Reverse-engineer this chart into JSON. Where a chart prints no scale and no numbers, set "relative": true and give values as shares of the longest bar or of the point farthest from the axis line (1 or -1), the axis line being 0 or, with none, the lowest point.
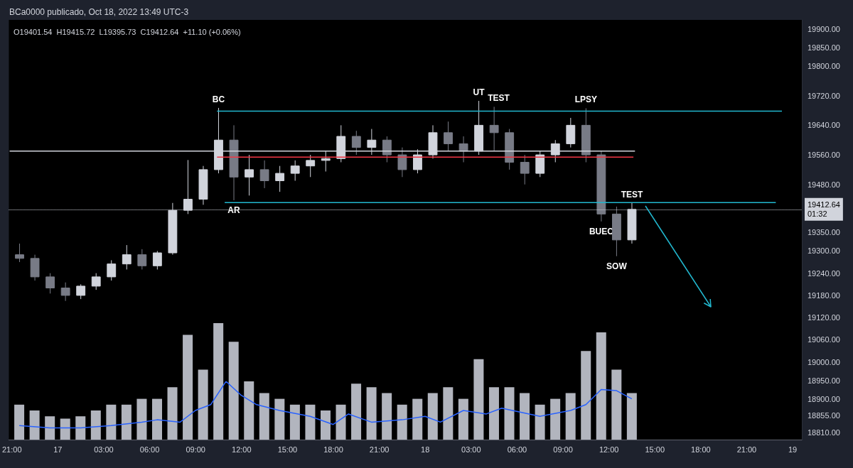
{
  "chart_data": [
    {
      "type": "candlestick",
      "title": "BCa0000 publicado, Oct 18, 2022 13:49 UTC-3",
      "subtitle": "O19401.54  H19415.72  L19395.73  C19412.64  +11.10 (+0.06%)",
      "colors": [
        "#787b86",
        "#787b86",
        "#787b86",
        "#787b86",
        "#d1d4dc",
        "#d1d4dc",
        "#d1d4dc",
        "#d1d4dc",
        "#787b86",
        "#d1d4dc",
        "#d1d4dc",
        "#d1d4dc",
        "#d1d4dc",
        "#d1d4dc",
        "#787b86",
        "#d1d4dc",
        "#787b86",
        "#d1d4dc",
        "#d1d4dc",
        "#d1d4dc",
        "#d1d4dc",
        "#d1d4dc",
        "#787b86",
        "#d1d4dc",
        "#787b86",
        "#787b86",
        "#d1d4dc",
        "#d1d4dc",
        "#787b86",
        "#787b86",
        "#d1d4dc",
        "#787b86",
        "#787b86",
        "#787b86",
        "#d1d4dc",
        "#d1d4dc",
        "#d1d4dc",
        "#787b86",
        "#787b86",
        "#787b86",
        "#d1d4dc"
      ],
      "x": [
        "2022-10-16T21:30",
        "2022-10-16T22:30",
        "2022-10-16T23:30",
        "2022-10-17T00:30",
        "2022-10-17T01:30",
        "2022-10-17T02:30",
        "2022-10-17T03:30",
        "2022-10-17T04:30",
        "2022-10-17T05:30",
        "2022-10-17T06:30",
        "2022-10-17T07:30",
        "2022-10-17T08:30",
        "2022-10-17T09:30",
        "2022-10-17T10:30",
        "2022-10-17T11:30",
        "2022-10-17T12:30",
        "2022-10-17T13:30",
        "2022-10-17T14:30",
        "2022-10-17T15:30",
        "2022-10-17T16:30",
        "2022-10-17T17:30",
        "2022-10-17T18:30",
        "2022-10-17T19:30",
        "2022-10-17T20:30",
        "2022-10-17T21:30",
        "2022-10-17T22:30",
        "2022-10-17T23:30",
        "2022-10-18T00:30",
        "2022-10-18T01:30",
        "2022-10-18T02:30",
        "2022-10-18T03:30",
        "2022-10-18T04:30",
        "2022-10-18T05:30",
        "2022-10-18T06:30",
        "2022-10-18T07:30",
        "2022-10-18T08:30",
        "2022-10-18T09:30",
        "2022-10-18T10:30",
        "2022-10-18T11:30",
        "2022-10-18T12:30",
        "2022-10-18T13:30"
      ],
      "ohlc": [
        [
          19290,
          19320,
          19270,
          19280
        ],
        [
          19280,
          19290,
          19220,
          19230
        ],
        [
          19230,
          19240,
          19185,
          19200
        ],
        [
          19200,
          19215,
          19165,
          19180
        ],
        [
          19180,
          19210,
          19170,
          19205
        ],
        [
          19205,
          19240,
          19195,
          19230
        ],
        [
          19230,
          19275,
          19220,
          19265
        ],
        [
          19265,
          19316,
          19250,
          19290
        ],
        [
          19290,
          19305,
          19250,
          19260
        ],
        [
          19260,
          19300,
          19250,
          19295
        ],
        [
          19295,
          19430,
          19290,
          19410
        ],
        [
          19410,
          19546,
          19400,
          19440
        ],
        [
          19440,
          19530,
          19425,
          19520
        ],
        [
          19520,
          19687,
          19510,
          19600
        ],
        [
          19600,
          19640,
          19437,
          19500
        ],
        [
          19500,
          19560,
          19450,
          19520
        ],
        [
          19520,
          19545,
          19470,
          19490
        ],
        [
          19490,
          19530,
          19460,
          19510
        ],
        [
          19510,
          19545,
          19490,
          19530
        ],
        [
          19530,
          19560,
          19500,
          19545
        ],
        [
          19545,
          19570,
          19515,
          19550
        ],
        [
          19550,
          19640,
          19540,
          19610
        ],
        [
          19610,
          19625,
          19560,
          19580
        ],
        [
          19580,
          19630,
          19560,
          19600
        ],
        [
          19600,
          19610,
          19540,
          19560
        ],
        [
          19560,
          19580,
          19500,
          19520
        ],
        [
          19520,
          19575,
          19510,
          19560
        ],
        [
          19560,
          19640,
          19550,
          19620
        ],
        [
          19620,
          19650,
          19570,
          19590
        ],
        [
          19590,
          19610,
          19540,
          19570
        ],
        [
          19570,
          19706,
          19560,
          19640
        ],
        [
          19640,
          19690,
          19570,
          19620
        ],
        [
          19620,
          19630,
          19520,
          19540
        ],
        [
          19540,
          19560,
          19480,
          19510
        ],
        [
          19510,
          19570,
          19500,
          19560
        ],
        [
          19560,
          19600,
          19540,
          19590
        ],
        [
          19590,
          19660,
          19580,
          19640
        ],
        [
          19640,
          19686,
          19540,
          19560
        ],
        [
          19560,
          19570,
          19380,
          19400
        ],
        [
          19400,
          19420,
          19286,
          19330
        ],
        [
          19330,
          19430,
          19320,
          19412.64
        ]
      ],
      "series": [
        {
          "type": "line",
          "color": "#22b8cf",
          "x": [
            "2022-10-17T10:24",
            "2022-10-18T23:18"
          ],
          "values": [
            19678,
            19678
          ]
        },
        {
          "type": "line",
          "color": "#22b8cf",
          "x": [
            "2022-10-17T10:54",
            "2022-10-18T22:54"
          ],
          "values": [
            19431,
            19431
          ]
        },
        {
          "type": "line",
          "color": "#d1d4dc",
          "x": [
            "2022-10-16T20:51",
            "2022-10-18T13:42"
          ],
          "values": [
            19570,
            19570
          ]
        },
        {
          "type": "line",
          "color": "#f23645",
          "x": [
            "2022-10-17T10:24",
            "2022-10-18T13:36"
          ],
          "values": [
            19554,
            19554
          ]
        }
      ],
      "ref_lines": [
        {
          "axis": "y",
          "value": 19412.64,
          "label": "19412.64\n01:32",
          "color": "#d1d4dc",
          "line_style": "dotted"
        }
      ],
      "annotations": [
        {
          "text": "BC",
          "x": "2022-10-17T10:30",
          "y": 19687
        },
        {
          "text": "AR",
          "x": "2022-10-17T11:30",
          "y": 19437
        },
        {
          "text": "UT",
          "x": "2022-10-18T03:30",
          "y": 19706
        },
        {
          "text": "TEST",
          "x": "2022-10-18T04:30",
          "y": 19690
        },
        {
          "text": "LPSY",
          "x": "2022-10-18T10:30",
          "y": 19686
        },
        {
          "text": "TEST",
          "x": "2022-10-18T13:30",
          "y": 19430
        },
        {
          "text": "BUEC",
          "x": "2022-10-18T11:30",
          "y": 19380
        },
        {
          "text": "SOW",
          "x": "2022-10-18T12:30",
          "y": 19286
        }
      ],
      "xlim": [
        "2022-10-16T20:48",
        "2022-10-19T00:36"
      ],
      "ylim": [
        18790,
        19925
      ],
      "xticks": [
        {
          "value": "2022-10-16T21:00",
          "label": "21:00"
        },
        {
          "value": "2022-10-17T00:00",
          "label": "17"
        },
        {
          "value": "2022-10-17T03:00",
          "label": "03:00"
        },
        {
          "value": "2022-10-17T06:00",
          "label": "06:00"
        },
        {
          "value": "2022-10-17T09:00",
          "label": "09:00"
        },
        {
          "value": "2022-10-17T12:00",
          "label": "12:00"
        },
        {
          "value": "2022-10-17T15:00",
          "label": "15:00"
        },
        {
          "value": "2022-10-17T18:00",
          "label": "18:00"
        },
        {
          "value": "2022-10-17T21:00",
          "label": "21:00"
        },
        {
          "value": "2022-10-18T00:00",
          "label": "18"
        },
        {
          "value": "2022-10-18T03:00",
          "label": "03:00"
        },
        {
          "value": "2022-10-18T06:00",
          "label": "06:00"
        },
        {
          "value": "2022-10-18T09:00",
          "label": "09:00"
        },
        {
          "value": "2022-10-18T12:00",
          "label": "12:00"
        },
        {
          "value": "2022-10-18T15:00",
          "label": "15:00"
        },
        {
          "value": "2022-10-18T18:00",
          "label": "18:00"
        },
        {
          "value": "2022-10-18T21:00",
          "label": "21:00"
        },
        {
          "value": "2022-10-19T00:00",
          "label": "19"
        }
      ],
      "yticks": [
        {
          "value": 19900,
          "label": "19900.00"
        },
        {
          "value": 19850,
          "label": "19850.00"
        },
        {
          "value": 19800,
          "label": "19800.00"
        },
        {
          "value": 19720,
          "label": "19720.00"
        },
        {
          "value": 19640,
          "label": "19640.00"
        },
        {
          "value": 19560,
          "label": "19560.00"
        },
        {
          "value": 19480,
          "label": "19480.00"
        },
        {
          "value": 19350,
          "label": "19350.00"
        },
        {
          "value": 19300,
          "label": "19300.00"
        },
        {
          "value": 19240,
          "label": "19240.00"
        },
        {
          "value": 19180,
          "label": "19180.00"
        },
        {
          "value": 19120,
          "label": "19120.00"
        },
        {
          "value": 19060,
          "label": "19060.00"
        },
        {
          "value": 19000,
          "label": "19000.00"
        },
        {
          "value": 18950,
          "label": "18950.00"
        },
        {
          "value": 18900,
          "label": "18900.00"
        },
        {
          "value": 18855,
          "label": "18855.00"
        },
        {
          "value": 18810,
          "label": "18810.00"
        }
      ]
    },
    {
      "type": "bar",
      "relative": true,
      "xlim": [
        "2022-10-16T20:48",
        "2022-10-19T00:36"
      ],
      "x": [
        "2022-10-16T21:30",
        "2022-10-16T22:30",
        "2022-10-16T23:30",
        "2022-10-17T00:30",
        "2022-10-17T01:30",
        "2022-10-17T02:30",
        "2022-10-17T03:30",
        "2022-10-17T04:30",
        "2022-10-17T05:30",
        "2022-10-17T06:30",
        "2022-10-17T07:30",
        "2022-10-17T08:30",
        "2022-10-17T09:30",
        "2022-10-17T10:30",
        "2022-10-17T11:30",
        "2022-10-17T12:30",
        "2022-10-17T13:30",
        "2022-10-17T14:30",
        "2022-10-17T15:30",
        "2022-10-17T16:30",
        "2022-10-17T17:30",
        "2022-10-17T18:30",
        "2022-10-17T19:30",
        "2022-10-17T20:30",
        "2022-10-17T21:30",
        "2022-10-17T22:30",
        "2022-10-17T23:30",
        "2022-10-18T00:30",
        "2022-10-18T01:30",
        "2022-10-18T02:30",
        "2022-10-18T03:30",
        "2022-10-18T04:30",
        "2022-10-18T05:30",
        "2022-10-18T06:30",
        "2022-10-18T07:30",
        "2022-10-18T08:30",
        "2022-10-18T09:30",
        "2022-10-18T10:30",
        "2022-10-18T11:30",
        "2022-10-18T12:30",
        "2022-10-18T13:30"
      ],
      "series": [
        {
          "color": "#b2b5be",
          "values": [
            0.3,
            0.25,
            0.2,
            0.18,
            0.2,
            0.25,
            0.3,
            0.3,
            0.35,
            0.35,
            0.45,
            0.9,
            0.6,
            1,
            0.84,
            0.5,
            0.4,
            0.35,
            0.3,
            0.3,
            0.25,
            0.3,
            0.48,
            0.45,
            0.4,
            0.3,
            0.35,
            0.4,
            0.45,
            0.35,
            0.69,
            0.45,
            0.45,
            0.4,
            0.3,
            0.35,
            0.4,
            0.76,
            0.92,
            0.6,
            0.4
          ]
        }
      ]
    },
    {
      "type": "line",
      "relative": true,
      "xlim": [
        "2022-10-16T20:48",
        "2022-10-19T00:36"
      ],
      "series": [
        {
          "color": "#2962ff",
          "x": [
            "2022-10-16T21:30",
            "2022-10-16T23:30",
            "2022-10-17T01:30",
            "2022-10-17T03:30",
            "2022-10-17T05:30",
            "2022-10-17T06:30",
            "2022-10-17T08:00",
            "2022-10-17T09:00",
            "2022-10-17T10:00",
            "2022-10-17T11:00",
            "2022-10-17T12:00",
            "2022-10-17T13:00",
            "2022-10-17T14:30",
            "2022-10-17T16:30",
            "2022-10-17T18:00",
            "2022-10-17T19:00",
            "2022-10-17T20:30",
            "2022-10-17T22:30",
            "2022-10-18T00:00",
            "2022-10-18T01:00",
            "2022-10-18T02:30",
            "2022-10-18T04:00",
            "2022-10-18T05:00",
            "2022-10-18T07:30",
            "2022-10-18T09:30",
            "2022-10-18T10:30",
            "2022-10-18T11:30",
            "2022-10-18T12:30",
            "2022-10-18T13:30"
          ],
          "values": [
            0.24,
            0.2,
            0.2,
            0.24,
            0.3,
            0.34,
            0.3,
            0.5,
            0.6,
            1,
            0.76,
            0.6,
            0.5,
            0.4,
            0.26,
            0.44,
            0.3,
            0.34,
            0.4,
            0.3,
            0.5,
            0.44,
            0.54,
            0.4,
            0.5,
            0.6,
            0.86,
            0.84,
            0.7
          ]
        }
      ]
    }
  ]
}
